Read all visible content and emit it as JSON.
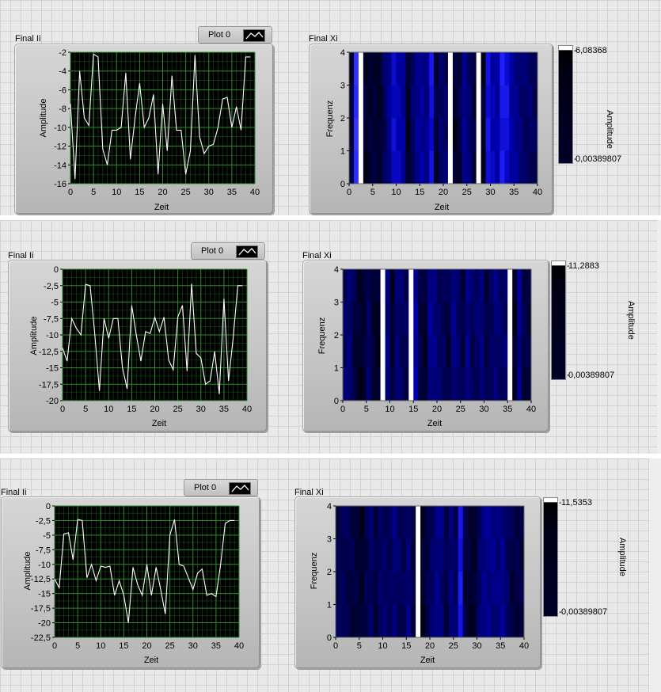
{
  "colors": {
    "plot_bg": "#000000",
    "grid": "#2d8a2d",
    "trace": "#ffffff",
    "intensity_high": "#ffffff",
    "intensity_low": "#000000"
  },
  "panels": [
    {
      "waveform": {
        "title": "Final Ii",
        "legend_label": "Plot 0",
        "legend_icon": "line-plot-icon",
        "xlabel": "Zeit",
        "ylabel": "Amplitude",
        "xlim": [
          0,
          40
        ],
        "ylim": [
          -16,
          -2
        ],
        "xticks": [
          "0",
          "5",
          "10",
          "15",
          "20",
          "25",
          "30",
          "35",
          "40"
        ],
        "yticks": [
          "-2",
          "-4",
          "-6",
          "-8",
          "-10",
          "-12",
          "-14",
          "-16"
        ]
      },
      "intensity": {
        "title": "Final Xi",
        "xlabel": "Zeit",
        "ylabel": "Frequenz",
        "xticks": [
          "0",
          "5",
          "10",
          "15",
          "20",
          "25",
          "30",
          "35",
          "40"
        ],
        "yticks": [
          "4",
          "3",
          "2",
          "1",
          "0"
        ],
        "scale_label": "Amplitude",
        "scale_max": "6,08368",
        "scale_min": "0,00389807"
      }
    },
    {
      "waveform": {
        "title": "Final Ii",
        "legend_label": "Plot 0",
        "legend_icon": "line-plot-icon",
        "xlabel": "Zeit",
        "ylabel": "Amplitude",
        "xlim": [
          0,
          40
        ],
        "ylim": [
          -20,
          0
        ],
        "xticks": [
          "0",
          "5",
          "10",
          "15",
          "20",
          "25",
          "30",
          "35",
          "40"
        ],
        "yticks": [
          "0",
          "-2,5",
          "-5",
          "-7,5",
          "-10",
          "-12,5",
          "-15",
          "-17,5",
          "-20"
        ]
      },
      "intensity": {
        "title": "Final Xi",
        "xlabel": "Zeit",
        "ylabel": "Frequenz",
        "xticks": [
          "0",
          "5",
          "10",
          "15",
          "20",
          "25",
          "30",
          "35",
          "40"
        ],
        "yticks": [
          "4",
          "3",
          "2",
          "1",
          "0"
        ],
        "scale_label": "Amplitude",
        "scale_max": "11,2883",
        "scale_min": "0,00389807"
      }
    },
    {
      "waveform": {
        "title": "Final Ii",
        "legend_label": "Plot 0",
        "legend_icon": "line-plot-icon",
        "xlabel": "Zeit",
        "ylabel": "Amplitude",
        "xlim": [
          0,
          40
        ],
        "ylim": [
          -22.5,
          0
        ],
        "xticks": [
          "0",
          "5",
          "10",
          "15",
          "20",
          "25",
          "30",
          "35",
          "40"
        ],
        "yticks": [
          "0",
          "-2,5",
          "-5",
          "-7,5",
          "-10",
          "-12,5",
          "-15",
          "-17,5",
          "-20",
          "-22,5"
        ]
      },
      "intensity": {
        "title": "Final Xi",
        "xlabel": "Zeit",
        "ylabel": "Frequenz",
        "xticks": [
          "0",
          "5",
          "10",
          "15",
          "20",
          "25",
          "30",
          "35",
          "40"
        ],
        "yticks": [
          "4",
          "3",
          "2",
          "1",
          "0"
        ],
        "scale_label": "Amplitude",
        "scale_max": "11,5353",
        "scale_min": "0,00389807"
      }
    }
  ],
  "chart_data": [
    {
      "type": "line",
      "title": "Final Ii",
      "xlabel": "Zeit",
      "ylabel": "Amplitude",
      "xlim": [
        0,
        40
      ],
      "ylim": [
        -16,
        -2
      ],
      "series": [
        {
          "name": "Plot 0",
          "x": [
            0,
            1,
            2,
            3,
            4,
            5,
            6,
            7,
            8,
            9,
            10,
            11,
            12,
            13,
            14,
            15,
            16,
            17,
            18,
            19,
            20,
            21,
            22,
            23,
            24,
            25,
            26,
            27,
            28,
            29,
            30,
            31,
            32,
            33,
            34,
            35,
            36,
            37,
            38,
            39
          ],
          "y": [
            -7.5,
            -15.5,
            -4,
            -9,
            -9.8,
            -2.2,
            -2.5,
            -12.3,
            -14,
            -10.3,
            -10.3,
            -10,
            -4.2,
            -13.4,
            -9,
            -5.3,
            -10,
            -9,
            -6.5,
            -15,
            -7.5,
            -12.5,
            -4.5,
            -10.3,
            -10.3,
            -15,
            -12.5,
            -2.3,
            -11,
            -12.8,
            -12,
            -11.8,
            -10,
            -7,
            -6.8,
            -10,
            -7.8,
            -10.3,
            -2.5,
            -2.5
          ]
        }
      ]
    },
    {
      "type": "line",
      "title": "Final Ii",
      "xlabel": "Zeit",
      "ylabel": "Amplitude",
      "xlim": [
        0,
        40
      ],
      "ylim": [
        -20,
        0
      ],
      "series": [
        {
          "name": "Plot 0",
          "x": [
            0,
            1,
            2,
            3,
            4,
            5,
            6,
            7,
            8,
            9,
            10,
            11,
            12,
            13,
            14,
            15,
            16,
            17,
            18,
            19,
            20,
            21,
            22,
            23,
            24,
            25,
            26,
            27,
            28,
            29,
            30,
            31,
            32,
            33,
            34,
            35,
            36,
            37,
            38,
            39
          ],
          "y": [
            -12,
            -14,
            -7.5,
            -9,
            -10,
            -2.3,
            -2.5,
            -10,
            -18.5,
            -7.5,
            -10.5,
            -7.5,
            -7.5,
            -15,
            -18.2,
            -5.5,
            -10,
            -14,
            -9.5,
            -9.8,
            -7.3,
            -9.5,
            -7.3,
            -13.8,
            -15.3,
            -7.3,
            -5.5,
            -15.5,
            -2.2,
            -12.8,
            -13.5,
            -17.5,
            -17,
            -12.5,
            -19,
            -4.5,
            -17,
            -10.5,
            -2.5,
            -2.5
          ]
        }
      ]
    },
    {
      "type": "line",
      "title": "Final Ii",
      "xlabel": "Zeit",
      "ylabel": "Amplitude",
      "xlim": [
        0,
        40
      ],
      "ylim": [
        -22.5,
        0
      ],
      "series": [
        {
          "name": "Plot 0",
          "x": [
            0,
            1,
            2,
            3,
            4,
            5,
            6,
            7,
            8,
            9,
            10,
            11,
            12,
            13,
            14,
            15,
            16,
            17,
            18,
            19,
            20,
            21,
            22,
            23,
            24,
            25,
            26,
            27,
            28,
            29,
            30,
            31,
            32,
            33,
            34,
            35,
            36,
            37,
            38,
            39
          ],
          "y": [
            -12.5,
            -14,
            -4.8,
            -4.6,
            -9.2,
            -2.3,
            -2.5,
            -12.3,
            -10,
            -12.8,
            -10.3,
            -10.5,
            -10.3,
            -15.3,
            -12.8,
            -15.3,
            -20,
            -10.5,
            -13.5,
            -15.3,
            -10,
            -15.3,
            -10.5,
            -14.3,
            -18.5,
            -5,
            -2.3,
            -10,
            -10.3,
            -12.3,
            -14.3,
            -11.5,
            -10.8,
            -15.3,
            -15,
            -15.5,
            -10,
            -3,
            -2.5,
            -2.5
          ]
        }
      ]
    },
    {
      "type": "heatmap",
      "title": "Final Xi",
      "xlabel": "Zeit",
      "ylabel": "Frequenz",
      "xlim": [
        0,
        40
      ],
      "ylim": [
        0,
        4
      ],
      "color_scale": {
        "label": "Amplitude",
        "min": 0.00389807,
        "max": 6.08368
      },
      "columns": [
        0.08,
        0.7,
        0.98,
        0.05,
        0.07,
        0.08,
        0.06,
        0.18,
        0.3,
        0.45,
        0.4,
        0.35,
        0.04,
        0.2,
        0.3,
        0.33,
        0.3,
        0.5,
        0.09,
        0.2,
        0.2,
        0.98,
        0.05,
        0.12,
        0.3,
        0.22,
        0.12,
        0.98,
        0.03,
        0.5,
        0.4,
        0.38,
        0.55,
        0.5,
        0.35,
        0.3,
        0.25,
        0.2,
        0.2,
        0.15
      ]
    },
    {
      "type": "heatmap",
      "title": "Final Xi",
      "xlabel": "Zeit",
      "ylabel": "Frequenz",
      "xlim": [
        0,
        40
      ],
      "ylim": [
        0,
        4
      ],
      "color_scale": {
        "label": "Amplitude",
        "min": 0.00389807,
        "max": 11.2883
      },
      "columns": [
        0.2,
        0.25,
        0.12,
        0.05,
        0.06,
        0.2,
        0.08,
        0.05,
        0.98,
        0.25,
        0.07,
        0.25,
        0.2,
        0.15,
        0.98,
        0.35,
        0.12,
        0.07,
        0.3,
        0.25,
        0.2,
        0.18,
        0.12,
        0.28,
        0.2,
        0.12,
        0.3,
        0.18,
        0.2,
        0.25,
        0.12,
        0.2,
        0.25,
        0.2,
        0.2,
        0.98,
        0.05,
        0.3,
        0.12,
        0.1
      ]
    },
    {
      "type": "heatmap",
      "title": "Final Xi",
      "xlabel": "Zeit",
      "ylabel": "Frequenz",
      "xlim": [
        0,
        40
      ],
      "ylim": [
        0,
        4
      ],
      "color_scale": {
        "label": "Amplitude",
        "min": 0.00389807,
        "max": 11.5353
      },
      "columns": [
        0.15,
        0.18,
        0.15,
        0.12,
        0.08,
        0.05,
        0.15,
        0.2,
        0.12,
        0.18,
        0.2,
        0.18,
        0.25,
        0.18,
        0.15,
        0.25,
        0.12,
        0.98,
        0.05,
        0.12,
        0.2,
        0.3,
        0.25,
        0.12,
        0.25,
        0.18,
        0.55,
        0.12,
        0.07,
        0.05,
        0.2,
        0.3,
        0.3,
        0.28,
        0.25,
        0.3,
        0.2,
        0.12,
        0.12,
        0.1
      ]
    }
  ]
}
